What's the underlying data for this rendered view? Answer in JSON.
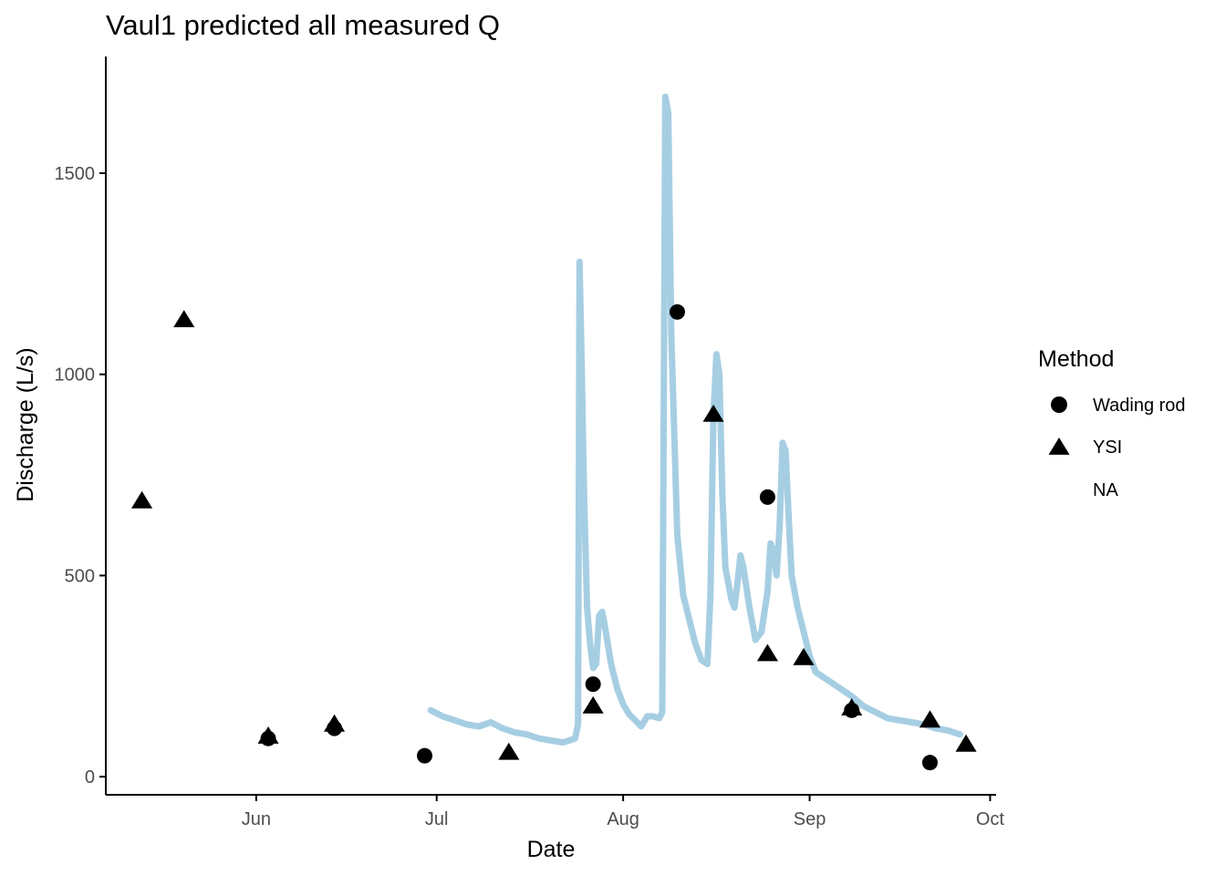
{
  "chart_data": {
    "type": "line",
    "title": "Vaul1 predicted all measured Q",
    "xlabel": "Date",
    "ylabel": "Discharge (L/s)",
    "x_tick_labels": [
      "Jun",
      "Jul",
      "Aug",
      "Sep",
      "Oct"
    ],
    "y_ticks": [
      0,
      500,
      1000,
      1500
    ],
    "ylim": [
      -45,
      1790
    ],
    "xlim": [
      "2022-05-07",
      "2022-10-02"
    ],
    "grid": false,
    "legend": {
      "position": "right",
      "title": "Method",
      "entries": [
        {
          "label": "Wading rod",
          "shape": "circle"
        },
        {
          "label": "YSI",
          "shape": "triangle"
        },
        {
          "label": "NA",
          "shape": "none"
        }
      ]
    },
    "colors": {
      "predicted_line": "#a6cee3",
      "points": "#000000",
      "axis": "#000000",
      "tick_label": "#4d4d4d"
    },
    "series": [
      {
        "type": "line",
        "points": [
          [
            "2022-06-30",
            165
          ],
          [
            "2022-07-02",
            150
          ],
          [
            "2022-07-04",
            140
          ],
          [
            "2022-07-06",
            130
          ],
          [
            "2022-07-08",
            125
          ],
          [
            "2022-07-10",
            135
          ],
          [
            "2022-07-12",
            120
          ],
          [
            "2022-07-14",
            110
          ],
          [
            "2022-07-16",
            105
          ],
          [
            "2022-07-18",
            95
          ],
          [
            "2022-07-20",
            90
          ],
          [
            "2022-07-22",
            85
          ],
          [
            "2022-07-23",
            90
          ],
          [
            "2022-07-24",
            95
          ],
          [
            "2022-07-24T12",
            130
          ],
          [
            "2022-07-24T18",
            1280
          ],
          [
            "2022-07-25",
            1100
          ],
          [
            "2022-07-25T12",
            700
          ],
          [
            "2022-07-26",
            420
          ],
          [
            "2022-07-26T12",
            330
          ],
          [
            "2022-07-27",
            270
          ],
          [
            "2022-07-27T12",
            280
          ],
          [
            "2022-07-28",
            400
          ],
          [
            "2022-07-28T12",
            410
          ],
          [
            "2022-07-29",
            370
          ],
          [
            "2022-07-30",
            280
          ],
          [
            "2022-07-31",
            220
          ],
          [
            "2022-08-01",
            180
          ],
          [
            "2022-08-02",
            155
          ],
          [
            "2022-08-03",
            140
          ],
          [
            "2022-08-04",
            125
          ],
          [
            "2022-08-05",
            150
          ],
          [
            "2022-08-06",
            150
          ],
          [
            "2022-08-07",
            145
          ],
          [
            "2022-08-07T12",
            160
          ],
          [
            "2022-08-08",
            1690
          ],
          [
            "2022-08-08T12",
            1650
          ],
          [
            "2022-08-09",
            1100
          ],
          [
            "2022-08-10",
            600
          ],
          [
            "2022-08-11",
            450
          ],
          [
            "2022-08-12",
            390
          ],
          [
            "2022-08-13",
            330
          ],
          [
            "2022-08-14",
            290
          ],
          [
            "2022-08-15",
            280
          ],
          [
            "2022-08-15T12",
            450
          ],
          [
            "2022-08-16",
            900
          ],
          [
            "2022-08-16T12",
            1050
          ],
          [
            "2022-08-17",
            1000
          ],
          [
            "2022-08-17T12",
            700
          ],
          [
            "2022-08-18",
            520
          ],
          [
            "2022-08-19",
            440
          ],
          [
            "2022-08-19T12",
            420
          ],
          [
            "2022-08-20",
            480
          ],
          [
            "2022-08-20T12",
            550
          ],
          [
            "2022-08-21",
            520
          ],
          [
            "2022-08-22",
            420
          ],
          [
            "2022-08-23",
            340
          ],
          [
            "2022-08-24",
            360
          ],
          [
            "2022-08-25",
            460
          ],
          [
            "2022-08-25T12",
            580
          ],
          [
            "2022-08-26",
            560
          ],
          [
            "2022-08-26T12",
            500
          ],
          [
            "2022-08-27",
            620
          ],
          [
            "2022-08-27T12",
            830
          ],
          [
            "2022-08-28",
            810
          ],
          [
            "2022-08-28T12",
            650
          ],
          [
            "2022-08-29",
            500
          ],
          [
            "2022-08-30",
            420
          ],
          [
            "2022-08-31",
            360
          ],
          [
            "2022-09-01",
            300
          ],
          [
            "2022-09-02",
            260
          ],
          [
            "2022-09-04",
            240
          ],
          [
            "2022-09-06",
            220
          ],
          [
            "2022-09-08",
            200
          ],
          [
            "2022-09-10",
            175
          ],
          [
            "2022-09-12",
            160
          ],
          [
            "2022-09-14",
            145
          ],
          [
            "2022-09-16",
            140
          ],
          [
            "2022-09-18",
            135
          ],
          [
            "2022-09-20",
            130
          ],
          [
            "2022-09-22",
            120
          ],
          [
            "2022-09-24",
            115
          ],
          [
            "2022-09-26",
            105
          ]
        ]
      },
      {
        "name": "Wading rod",
        "type": "scatter",
        "shape": "circle",
        "points": [
          [
            "2022-06-03",
            95
          ],
          [
            "2022-06-14",
            120
          ],
          [
            "2022-06-29",
            52
          ],
          [
            "2022-07-27",
            230
          ],
          [
            "2022-08-10",
            1155
          ],
          [
            "2022-08-25",
            695
          ],
          [
            "2022-09-08",
            165
          ],
          [
            "2022-09-21",
            35
          ]
        ]
      },
      {
        "name": "YSI",
        "type": "scatter",
        "shape": "triangle",
        "points": [
          [
            "2022-05-13",
            685
          ],
          [
            "2022-05-20",
            1135
          ],
          [
            "2022-06-03",
            100
          ],
          [
            "2022-06-14",
            130
          ],
          [
            "2022-07-13",
            60
          ],
          [
            "2022-07-27",
            175
          ],
          [
            "2022-08-16",
            900
          ],
          [
            "2022-08-25",
            305
          ],
          [
            "2022-08-31",
            295
          ],
          [
            "2022-09-08",
            170
          ],
          [
            "2022-09-21",
            140
          ],
          [
            "2022-09-27",
            80
          ]
        ]
      }
    ]
  }
}
